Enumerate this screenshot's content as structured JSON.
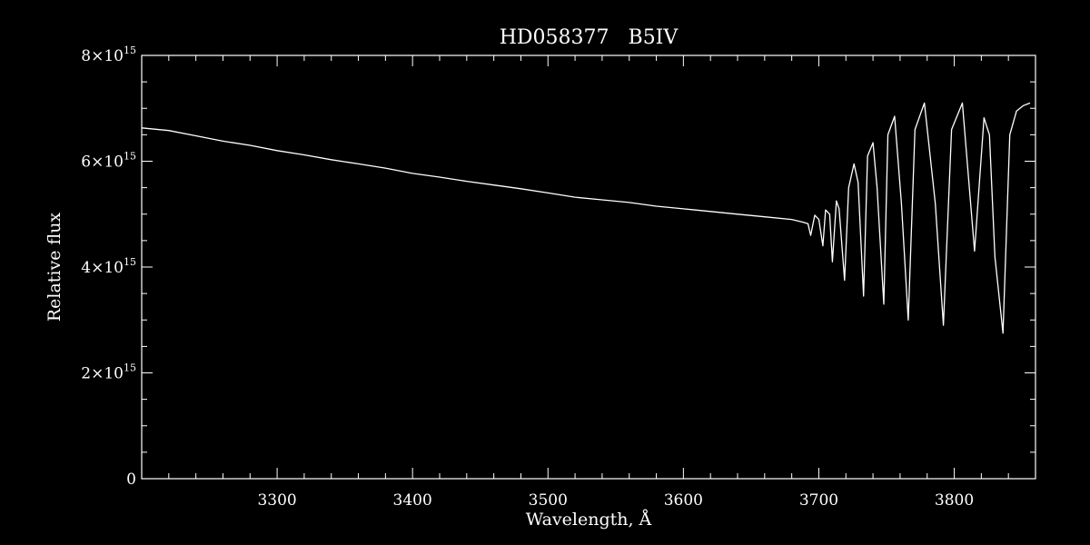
{
  "chart_data": {
    "type": "line",
    "title": "HD058377   B5IV",
    "xlabel": "Wavelength, Å",
    "ylabel": "Relative flux",
    "xlim": [
      3200,
      3860
    ],
    "ylim": [
      0,
      8000000000000000.0
    ],
    "x_ticks": [
      {
        "value": 3300,
        "label": "3300"
      },
      {
        "value": 3400,
        "label": "3400"
      },
      {
        "value": 3500,
        "label": "3500"
      },
      {
        "value": 3600,
        "label": "3600"
      },
      {
        "value": 3700,
        "label": "3700"
      },
      {
        "value": 3800,
        "label": "3800"
      }
    ],
    "y_ticks": [
      {
        "value": 0,
        "mantissa": "0",
        "exponent": ""
      },
      {
        "value": 2000000000000000.0,
        "mantissa": "2×10",
        "exponent": "15"
      },
      {
        "value": 4000000000000000.0,
        "mantissa": "4×10",
        "exponent": "15"
      },
      {
        "value": 6000000000000000.0,
        "mantissa": "6×10",
        "exponent": "15"
      },
      {
        "value": 8000000000000000.0,
        "mantissa": "8×10",
        "exponent": "15"
      }
    ],
    "grid": false,
    "series": [
      {
        "color": "#ffffff",
        "x": [
          3200,
          3220,
          3240,
          3260,
          3280,
          3300,
          3320,
          3340,
          3360,
          3380,
          3400,
          3420,
          3440,
          3460,
          3480,
          3500,
          3520,
          3540,
          3560,
          3580,
          3600,
          3620,
          3640,
          3660,
          3680,
          3688,
          3692,
          3694,
          3697,
          3700,
          3703,
          3705,
          3708,
          3710,
          3713,
          3715,
          3719,
          3722,
          3726,
          3729,
          3733,
          3736,
          3740,
          3743,
          3748,
          3751,
          3756,
          3761,
          3766,
          3771,
          3778,
          3786,
          3792,
          3798,
          3806,
          3815,
          3822,
          3826,
          3830,
          3836,
          3841,
          3846,
          3851,
          3856
        ],
        "y": [
          6630000000000000.0,
          6580000000000000.0,
          6480000000000000.0,
          6380000000000000.0,
          6300000000000000.0,
          6200000000000000.0,
          6120000000000000.0,
          6030000000000000.0,
          5950000000000000.0,
          5870000000000000.0,
          5770000000000000.0,
          5700000000000000.0,
          5620000000000000.0,
          5550000000000000.0,
          5480000000000000.0,
          5400000000000000.0,
          5320000000000000.0,
          5270000000000000.0,
          5220000000000000.0,
          5150000000000000.0,
          5100000000000000.0,
          5050000000000000.0,
          5000000000000000.0,
          4950000000000000.0,
          4900000000000000.0,
          4850000000000000.0,
          4820000000000000.0,
          4600000000000000.0,
          4980000000000000.0,
          4900000000000000.0,
          4400000000000000.0,
          5080000000000000.0,
          5000000000000000.0,
          4100000000000000.0,
          5250000000000000.0,
          5100000000000000.0,
          3750000000000000.0,
          5500000000000000.0,
          5950000000000000.0,
          5600000000000000.0,
          3450000000000000.0,
          6100000000000000.0,
          6350000000000000.0,
          5500000000000000.0,
          3300000000000000.0,
          6500000000000000.0,
          6850000000000000.0,
          5200000000000000.0,
          3000000000000000.0,
          6600000000000000.0,
          7100000000000000.0,
          5200000000000000.0,
          2900000000000000.0,
          6600000000000000.0,
          7100000000000000.0,
          4300000000000000.0,
          6820000000000000.0,
          6500000000000000.0,
          4200000000000000.0,
          2750000000000000.0,
          6500000000000000.0,
          6950000000000000.0,
          7050000000000000.0,
          7100000000000000.0
        ]
      }
    ]
  }
}
